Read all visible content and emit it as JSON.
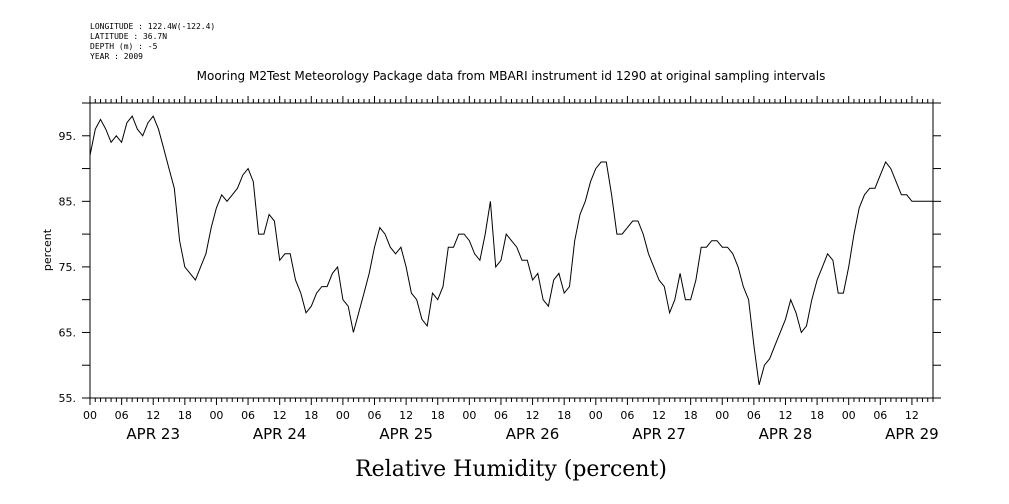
{
  "header": {
    "longitude": "LONGITUDE : 122.4W(-122.4)",
    "latitude": "LATITUDE : 36.7N",
    "depth": "DEPTH (m) : -5",
    "year": "YEAR : 2009"
  },
  "chart_data": {
    "type": "line",
    "title": "Mooring M2Test Meteorology Package data from MBARI instrument id 1290 at original sampling intervals",
    "xlabel": "Relative Humidity (percent)",
    "ylabel": "percent",
    "ylim": [
      55,
      100
    ],
    "yticks": [
      55,
      65,
      75,
      85,
      95
    ],
    "ytick_labels": [
      "55.",
      "65.",
      "75.",
      "85.",
      "95."
    ],
    "xlim_hours": [
      0,
      160
    ],
    "hour_tick_labels": [
      "00",
      "06",
      "12",
      "18",
      "00",
      "06",
      "12",
      "18",
      "00",
      "06",
      "12",
      "18",
      "00",
      "06",
      "12",
      "18",
      "00",
      "06",
      "12",
      "18",
      "00",
      "06",
      "12",
      "18",
      "00",
      "06",
      "12"
    ],
    "date_labels": [
      "APR 23",
      "APR 24",
      "APR 25",
      "APR 26",
      "APR 27",
      "APR 28",
      "APR 29"
    ],
    "grid": false,
    "x_units": "hours since 00:00 APR 23 2009",
    "series": [
      {
        "name": "",
        "x": [
          0,
          1,
          2,
          3,
          4,
          5,
          6,
          7,
          8,
          9,
          10,
          11,
          12,
          13,
          14,
          15,
          16,
          17,
          18,
          19,
          20,
          21,
          22,
          23,
          24,
          25,
          26,
          27,
          28,
          29,
          30,
          31,
          32,
          33,
          34,
          35,
          36,
          37,
          38,
          39,
          40,
          41,
          42,
          43,
          44,
          45,
          46,
          47,
          48,
          49,
          50,
          51,
          52,
          53,
          54,
          55,
          56,
          57,
          58,
          59,
          60,
          61,
          62,
          63,
          64,
          65,
          66,
          67,
          68,
          69,
          70,
          71,
          72,
          73,
          74,
          75,
          76,
          77,
          78,
          79,
          80,
          81,
          82,
          83,
          84,
          85,
          86,
          87,
          88,
          89,
          90,
          91,
          92,
          93,
          94,
          95,
          96,
          97,
          98,
          99,
          100,
          101,
          102,
          103,
          104,
          105,
          106,
          107,
          108,
          109,
          110,
          111,
          112,
          113,
          114,
          115,
          116,
          117,
          118,
          119,
          120,
          121,
          122,
          123,
          124,
          125,
          126,
          127,
          128,
          129,
          130,
          131,
          132,
          133,
          134,
          135,
          136,
          137,
          138,
          139,
          140,
          141,
          142,
          143,
          144,
          145,
          146,
          147,
          148,
          149,
          150,
          151,
          152,
          153,
          154,
          155,
          156,
          157,
          158,
          159,
          160
        ],
        "values": [
          92,
          96,
          97.5,
          96,
          94,
          95,
          94,
          97,
          98,
          96,
          95,
          97,
          98,
          96,
          93,
          90,
          87,
          79,
          75,
          74,
          73,
          75,
          77,
          81,
          84,
          86,
          85,
          86,
          87,
          89,
          90,
          88,
          80,
          80,
          83,
          82,
          76,
          77,
          77,
          73,
          71,
          68,
          69,
          71,
          72,
          72,
          74,
          75,
          70,
          69,
          65,
          68,
          71,
          74,
          78,
          81,
          80,
          78,
          77,
          78,
          75,
          71,
          70,
          67,
          66,
          71,
          70,
          72,
          78,
          78,
          80,
          80,
          79,
          77,
          76,
          80,
          85,
          75,
          76,
          80,
          79,
          78,
          76,
          76,
          73,
          74,
          70,
          69,
          73,
          74,
          71,
          72,
          79,
          83,
          85,
          88,
          90,
          91,
          91,
          86,
          80,
          80,
          81,
          82,
          82,
          80,
          77,
          75,
          73,
          72,
          68,
          70,
          74,
          70,
          70,
          73,
          78,
          78,
          79,
          79,
          78,
          78,
          77,
          75,
          72,
          70,
          63,
          57,
          60,
          61,
          63,
          65,
          67,
          70,
          68,
          65,
          66,
          70,
          73,
          75,
          77,
          76,
          71,
          71,
          75,
          80,
          84,
          86,
          87,
          87,
          89,
          91,
          90,
          88,
          86,
          86,
          85,
          85,
          85,
          85,
          85
        ]
      }
    ]
  }
}
